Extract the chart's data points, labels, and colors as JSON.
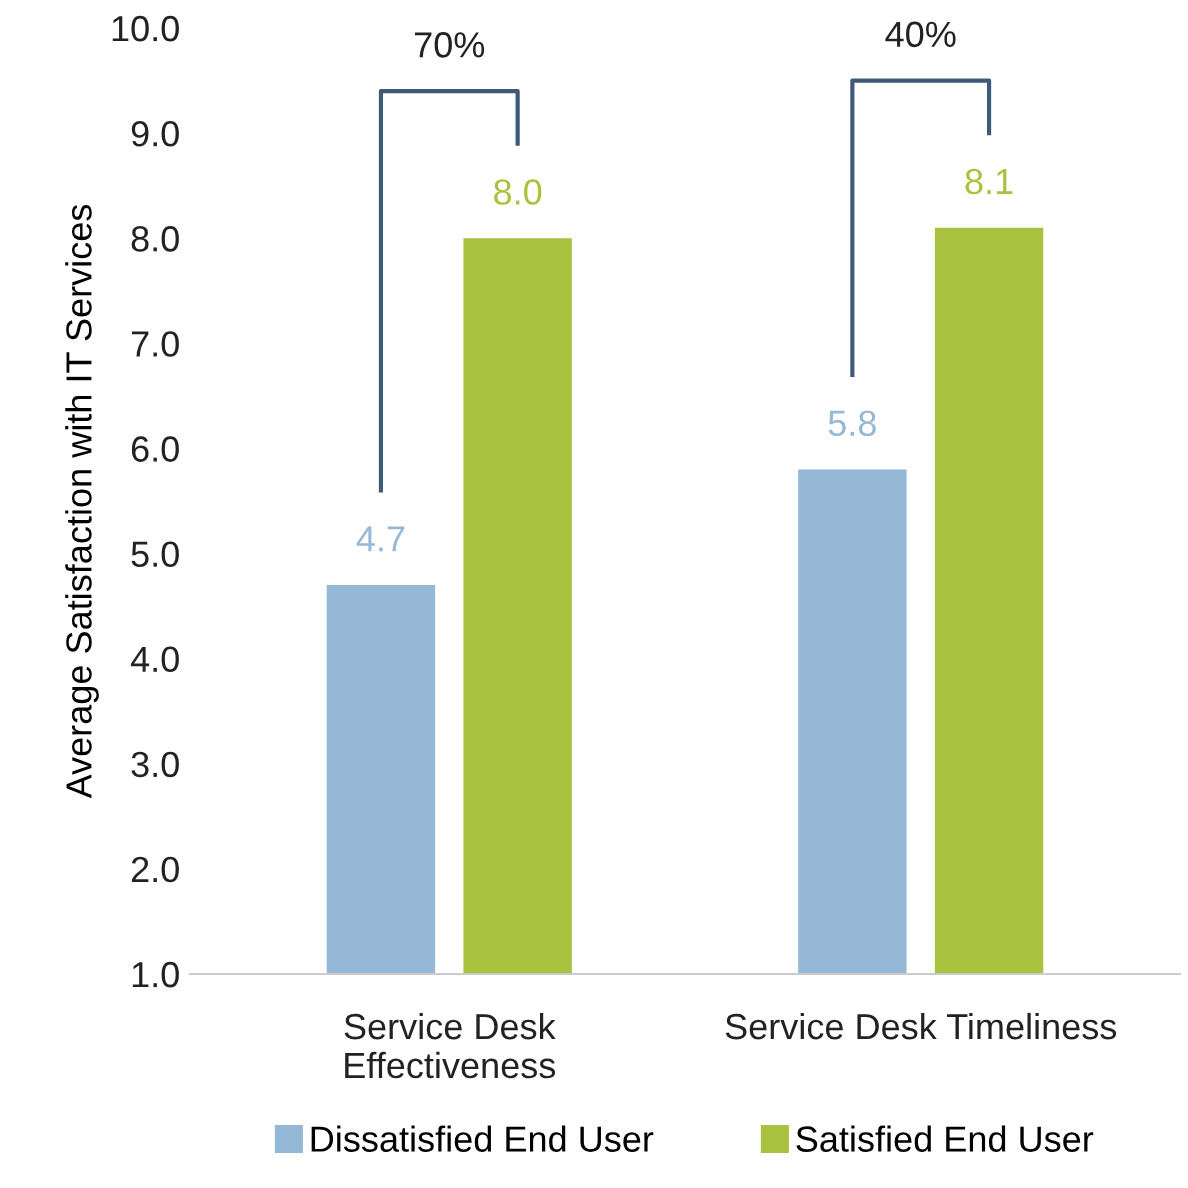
{
  "chart_data": {
    "type": "bar",
    "ylabel": "Average Satisfaction with IT Services",
    "categories": [
      "Service Desk\nEffectiveness",
      "Service Desk Timeliness"
    ],
    "series": [
      {
        "name": "Dissatisfied End User",
        "color": "#94b8d5",
        "values": [
          4.7,
          5.8
        ],
        "value_labels": [
          "4.7",
          "5.8"
        ]
      },
      {
        "name": "Satisfied End User",
        "color": "#a9c23f",
        "values": [
          8.0,
          8.1
        ],
        "value_labels": [
          "8.0",
          "8.1"
        ]
      }
    ],
    "ylim": [
      1.0,
      10.0
    ],
    "yticks": [
      {
        "value": 1,
        "label": "1.0"
      },
      {
        "value": 2,
        "label": "2.0"
      },
      {
        "value": 3,
        "label": "3.0"
      },
      {
        "value": 4,
        "label": "4.0"
      },
      {
        "value": 5,
        "label": "5.0"
      },
      {
        "value": 6,
        "label": "6.0"
      },
      {
        "value": 7,
        "label": "7.0"
      },
      {
        "value": 8,
        "label": "8.0"
      },
      {
        "value": 9,
        "label": "9.0"
      },
      {
        "value": 10,
        "label": "10.0"
      }
    ],
    "annotations": [
      "70%",
      "40%"
    ],
    "grid": false,
    "legend": "bottom"
  }
}
